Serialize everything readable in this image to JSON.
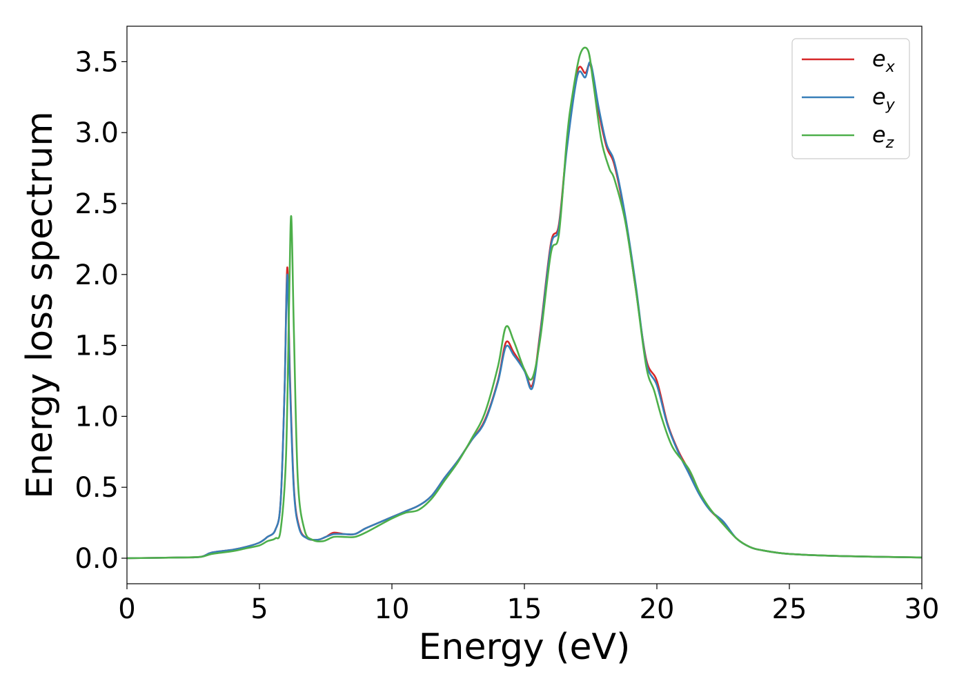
{
  "chart_data": {
    "type": "line",
    "xlabel": "Energy (eV)",
    "ylabel": "Energy loss spectrum",
    "xlim": [
      0,
      30
    ],
    "ylim": [
      -0.18,
      3.75
    ],
    "xticks": [
      0,
      5,
      10,
      15,
      20,
      25,
      30
    ],
    "yticks": [
      0.0,
      0.5,
      1.0,
      1.5,
      2.0,
      2.5,
      3.0,
      3.5
    ],
    "xtick_labels": [
      "0",
      "5",
      "10",
      "15",
      "20",
      "25",
      "30"
    ],
    "ytick_labels": [
      "0.0",
      "0.5",
      "1.0",
      "1.5",
      "2.0",
      "2.5",
      "3.0",
      "3.5"
    ],
    "grid": false,
    "legend_position": "top-right",
    "series": [
      {
        "name": "e",
        "subscript": "x",
        "color": "#d62728",
        "points": [
          [
            0,
            0
          ],
          [
            2,
            0.005
          ],
          [
            2.8,
            0.01
          ],
          [
            3.2,
            0.04
          ],
          [
            4.0,
            0.06
          ],
          [
            4.5,
            0.08
          ],
          [
            5.0,
            0.11
          ],
          [
            5.3,
            0.15
          ],
          [
            5.6,
            0.2
          ],
          [
            5.8,
            0.4
          ],
          [
            5.95,
            1.2
          ],
          [
            6.05,
            2.05
          ],
          [
            6.15,
            1.3
          ],
          [
            6.3,
            0.5
          ],
          [
            6.5,
            0.22
          ],
          [
            6.8,
            0.14
          ],
          [
            7.2,
            0.13
          ],
          [
            7.5,
            0.15
          ],
          [
            7.8,
            0.18
          ],
          [
            8.2,
            0.17
          ],
          [
            8.6,
            0.17
          ],
          [
            9.0,
            0.21
          ],
          [
            9.5,
            0.25
          ],
          [
            10.0,
            0.29
          ],
          [
            10.5,
            0.33
          ],
          [
            11.0,
            0.37
          ],
          [
            11.5,
            0.44
          ],
          [
            12.0,
            0.57
          ],
          [
            12.5,
            0.69
          ],
          [
            13.0,
            0.83
          ],
          [
            13.5,
            0.97
          ],
          [
            14.0,
            1.25
          ],
          [
            14.3,
            1.52
          ],
          [
            14.6,
            1.45
          ],
          [
            15.0,
            1.33
          ],
          [
            15.3,
            1.22
          ],
          [
            15.6,
            1.6
          ],
          [
            16.0,
            2.22
          ],
          [
            16.3,
            2.35
          ],
          [
            16.6,
            2.9
          ],
          [
            17.0,
            3.43
          ],
          [
            17.3,
            3.42
          ],
          [
            17.5,
            3.47
          ],
          [
            17.8,
            3.15
          ],
          [
            18.1,
            2.9
          ],
          [
            18.4,
            2.77
          ],
          [
            18.8,
            2.4
          ],
          [
            19.2,
            1.9
          ],
          [
            19.6,
            1.4
          ],
          [
            20.0,
            1.25
          ],
          [
            20.4,
            0.95
          ],
          [
            20.8,
            0.76
          ],
          [
            21.2,
            0.62
          ],
          [
            21.6,
            0.46
          ],
          [
            22.0,
            0.34
          ],
          [
            22.5,
            0.25
          ],
          [
            23.0,
            0.14
          ],
          [
            23.5,
            0.08
          ],
          [
            24.0,
            0.055
          ],
          [
            25.0,
            0.03
          ],
          [
            27.0,
            0.015
          ],
          [
            30.0,
            0.005
          ]
        ]
      },
      {
        "name": "e",
        "subscript": "y",
        "color": "#377eb8",
        "points": [
          [
            0,
            0
          ],
          [
            2,
            0.005
          ],
          [
            2.8,
            0.01
          ],
          [
            3.2,
            0.04
          ],
          [
            4.0,
            0.06
          ],
          [
            4.5,
            0.08
          ],
          [
            5.0,
            0.11
          ],
          [
            5.3,
            0.15
          ],
          [
            5.6,
            0.2
          ],
          [
            5.8,
            0.4
          ],
          [
            5.95,
            1.2
          ],
          [
            6.05,
            2.0
          ],
          [
            6.15,
            1.25
          ],
          [
            6.3,
            0.48
          ],
          [
            6.5,
            0.21
          ],
          [
            6.8,
            0.14
          ],
          [
            7.2,
            0.13
          ],
          [
            7.5,
            0.15
          ],
          [
            7.8,
            0.17
          ],
          [
            8.2,
            0.17
          ],
          [
            8.6,
            0.17
          ],
          [
            9.0,
            0.21
          ],
          [
            9.5,
            0.25
          ],
          [
            10.0,
            0.29
          ],
          [
            10.5,
            0.33
          ],
          [
            11.0,
            0.37
          ],
          [
            11.5,
            0.44
          ],
          [
            12.0,
            0.57
          ],
          [
            12.5,
            0.69
          ],
          [
            13.0,
            0.83
          ],
          [
            13.5,
            0.96
          ],
          [
            14.0,
            1.24
          ],
          [
            14.3,
            1.49
          ],
          [
            14.6,
            1.43
          ],
          [
            15.0,
            1.32
          ],
          [
            15.3,
            1.2
          ],
          [
            15.6,
            1.58
          ],
          [
            16.0,
            2.2
          ],
          [
            16.3,
            2.33
          ],
          [
            16.6,
            2.88
          ],
          [
            17.0,
            3.4
          ],
          [
            17.3,
            3.39
          ],
          [
            17.5,
            3.49
          ],
          [
            17.8,
            3.18
          ],
          [
            18.1,
            2.92
          ],
          [
            18.4,
            2.79
          ],
          [
            18.8,
            2.42
          ],
          [
            19.2,
            1.93
          ],
          [
            19.6,
            1.38
          ],
          [
            20.0,
            1.22
          ],
          [
            20.4,
            0.94
          ],
          [
            20.8,
            0.75
          ],
          [
            21.2,
            0.6
          ],
          [
            21.6,
            0.45
          ],
          [
            22.0,
            0.34
          ],
          [
            22.5,
            0.26
          ],
          [
            23.0,
            0.14
          ],
          [
            23.5,
            0.08
          ],
          [
            24.0,
            0.055
          ],
          [
            25.0,
            0.03
          ],
          [
            27.0,
            0.015
          ],
          [
            30.0,
            0.005
          ]
        ]
      },
      {
        "name": "e",
        "subscript": "z",
        "color": "#4daf4a",
        "points": [
          [
            0,
            0
          ],
          [
            2,
            0.005
          ],
          [
            2.8,
            0.01
          ],
          [
            3.2,
            0.03
          ],
          [
            4.0,
            0.05
          ],
          [
            4.5,
            0.07
          ],
          [
            5.0,
            0.09
          ],
          [
            5.3,
            0.12
          ],
          [
            5.6,
            0.14
          ],
          [
            5.8,
            0.2
          ],
          [
            6.0,
            0.7
          ],
          [
            6.12,
            1.8
          ],
          [
            6.2,
            2.41
          ],
          [
            6.3,
            1.6
          ],
          [
            6.45,
            0.55
          ],
          [
            6.7,
            0.2
          ],
          [
            7.0,
            0.13
          ],
          [
            7.4,
            0.12
          ],
          [
            7.8,
            0.15
          ],
          [
            8.2,
            0.15
          ],
          [
            8.6,
            0.15
          ],
          [
            9.0,
            0.18
          ],
          [
            9.5,
            0.23
          ],
          [
            10.0,
            0.28
          ],
          [
            10.5,
            0.32
          ],
          [
            11.0,
            0.34
          ],
          [
            11.5,
            0.42
          ],
          [
            12.0,
            0.55
          ],
          [
            12.5,
            0.68
          ],
          [
            13.0,
            0.84
          ],
          [
            13.5,
            1.02
          ],
          [
            14.0,
            1.35
          ],
          [
            14.3,
            1.63
          ],
          [
            14.6,
            1.53
          ],
          [
            15.0,
            1.33
          ],
          [
            15.3,
            1.27
          ],
          [
            15.6,
            1.55
          ],
          [
            16.0,
            2.15
          ],
          [
            16.3,
            2.28
          ],
          [
            16.6,
            2.95
          ],
          [
            16.8,
            3.25
          ],
          [
            17.1,
            3.55
          ],
          [
            17.4,
            3.58
          ],
          [
            17.6,
            3.35
          ],
          [
            17.9,
            2.95
          ],
          [
            18.2,
            2.75
          ],
          [
            18.4,
            2.67
          ],
          [
            18.8,
            2.38
          ],
          [
            19.2,
            1.9
          ],
          [
            19.6,
            1.35
          ],
          [
            19.9,
            1.18
          ],
          [
            20.2,
            0.98
          ],
          [
            20.6,
            0.78
          ],
          [
            21.2,
            0.63
          ],
          [
            21.6,
            0.47
          ],
          [
            22.0,
            0.35
          ],
          [
            22.5,
            0.24
          ],
          [
            23.0,
            0.14
          ],
          [
            23.5,
            0.08
          ],
          [
            24.0,
            0.055
          ],
          [
            25.0,
            0.03
          ],
          [
            27.0,
            0.015
          ],
          [
            30.0,
            0.005
          ]
        ]
      }
    ]
  }
}
